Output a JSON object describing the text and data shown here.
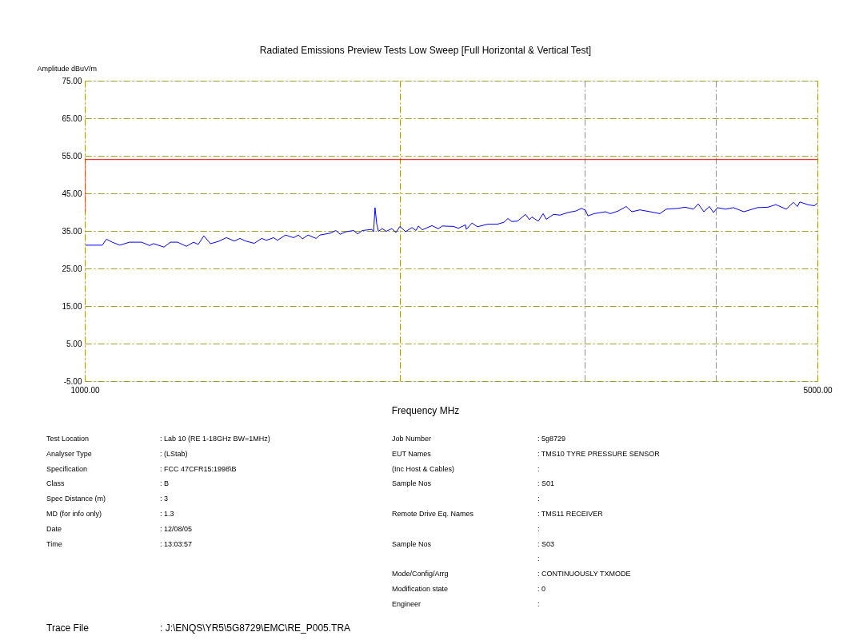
{
  "chart_data": {
    "type": "line",
    "subtitle": "Radiated Emissions Preview Tests Low Sweep [Full Horizontal & Vertical Test]",
    "xlabel": "Frequency MHz",
    "ylabel": "Amplitude dBuV/m",
    "log": "x",
    "grid": true,
    "xlim": [
      1000,
      5000
    ],
    "xticks": [
      {
        "value": 1000,
        "label": "1000.00"
      },
      {
        "value": 2000,
        "label": null
      },
      {
        "value": 3000,
        "label": null
      },
      {
        "value": 4000,
        "label": null
      },
      {
        "value": 5000,
        "label": "5000.00"
      }
    ],
    "ylim": [
      -5,
      75
    ],
    "yticks": [
      {
        "value": -5,
        "label": "-5.00"
      },
      {
        "value": 5,
        "label": "5.00"
      },
      {
        "value": 15,
        "label": "15.00"
      },
      {
        "value": 25,
        "label": "25.00"
      },
      {
        "value": 35,
        "label": "35.00"
      },
      {
        "value": 45,
        "label": "45.00"
      },
      {
        "value": 55,
        "label": "55.00"
      },
      {
        "value": 65,
        "label": "65.00"
      },
      {
        "value": 75,
        "label": "75.00"
      }
    ],
    "series": [
      {
        "color": "#ff0000",
        "x": [
          1000,
          1000,
          5000
        ],
        "values": [
          40,
          54,
          54
        ]
      },
      {
        "color": "#0000ff",
        "x": [
          1002,
          1039,
          1049,
          1062,
          1080,
          1103,
          1133,
          1153,
          1163,
          1190,
          1207,
          1226,
          1250,
          1270,
          1283,
          1299,
          1318,
          1341,
          1365,
          1389,
          1406,
          1424,
          1451,
          1475,
          1490,
          1514,
          1527,
          1554,
          1582,
          1599,
          1613,
          1633,
          1662,
          1676,
          1715,
          1736,
          1752,
          1776,
          1805,
          1821,
          1840,
          1879,
          1886,
          1892,
          1899,
          1906,
          1922,
          1939,
          1963,
          1981,
          1998,
          2023,
          2052,
          2070,
          2081,
          2099,
          2144,
          2174,
          2193,
          2248,
          2272,
          2308,
          2312,
          2341,
          2369,
          2424,
          2476,
          2511,
          2533,
          2555,
          2587,
          2633,
          2656,
          2670,
          2708,
          2737,
          2756,
          2800,
          2840,
          2890,
          2941,
          2978,
          3004,
          3020,
          3062,
          3139,
          3172,
          3228,
          3285,
          3326,
          3385,
          3463,
          3537,
          3587,
          3676,
          3741,
          3808,
          3848,
          3896,
          3944,
          3979,
          4014,
          4086,
          4157,
          4254,
          4382,
          4484,
          4563,
          4669,
          4743,
          4785,
          4810,
          4895,
          4965,
          5000
        ],
        "values": [
          31.2,
          31.2,
          32.8,
          32.0,
          31.2,
          32.0,
          32.0,
          31.1,
          31.6,
          30.7,
          32.0,
          32.0,
          30.9,
          32.0,
          31.4,
          33.7,
          31.6,
          32.2,
          33.2,
          32.3,
          33.0,
          32.3,
          31.7,
          33.0,
          32.5,
          33.2,
          32.5,
          33.9,
          33.2,
          33.9,
          32.9,
          33.9,
          33.0,
          33.9,
          34.4,
          35.1,
          34.1,
          34.8,
          35.1,
          34.2,
          35.1,
          35.4,
          34.8,
          41.2,
          36.9,
          34.9,
          35.6,
          34.9,
          35.6,
          34.6,
          36.2,
          34.8,
          35.9,
          35.1,
          36.3,
          35.3,
          36.4,
          35.6,
          36.3,
          36.2,
          35.7,
          36.6,
          35.4,
          37.1,
          36.1,
          36.8,
          36.8,
          37.3,
          38.3,
          37.5,
          37.6,
          39.4,
          38.0,
          38.7,
          37.6,
          39.6,
          38.1,
          39.4,
          39.2,
          39.9,
          40.3,
          41.0,
          40.5,
          39.0,
          39.6,
          40.1,
          39.6,
          40.3,
          41.5,
          40.1,
          40.6,
          40.1,
          39.6,
          40.8,
          41.0,
          41.3,
          40.8,
          42.2,
          40.1,
          41.5,
          39.9,
          41.2,
          40.8,
          41.2,
          40.1,
          41.2,
          41.3,
          42.0,
          40.8,
          42.6,
          41.5,
          42.7,
          42.0,
          41.7,
          42.4
        ]
      }
    ],
    "annotations": [
      "Test Location : Lab 10 (RE 1-18GHz BW=1MHz)",
      "Analyser Type : (LStab)",
      "Specification : FCC 47CFR15:1998\\B",
      "Class : B",
      "Spec Distance (m) : 3",
      "MD (for info only) : 1.3",
      "Date : 12/08/05",
      "Time : 13:03:57",
      "Job Number : 5g8729",
      "EUT Names : TMS10 TYRE PRESSURE SENSOR",
      "(Inc Host & Cables) :",
      "Sample Nos : S01",
      " :",
      "Remote Drive Eq. Names : TMS11 RECEIVER",
      " :",
      "Sample Nos : S03",
      " :",
      "Mode/Config/Arrg : CONTINUOUSLY TXMODE",
      "Modification state : 0",
      "Engineer :",
      "Trace File : J:\\ENQS\\YR5\\5G8729\\EMC\\RE_P005.TRA"
    ]
  }
}
